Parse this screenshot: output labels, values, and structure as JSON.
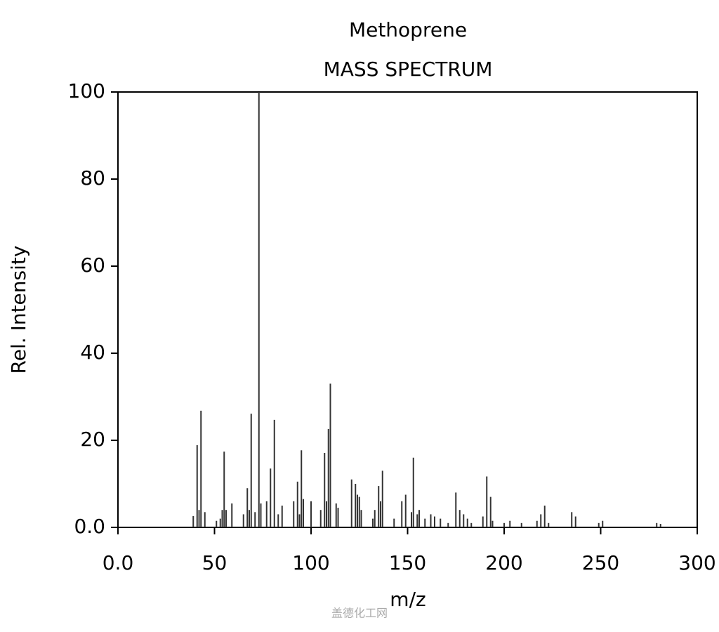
{
  "chart_data": {
    "type": "spectrum",
    "title": "Methoprene",
    "subtitle": "MASS SPECTRUM",
    "x_label": "m/z",
    "y_label": "Rel. Intensity",
    "color": "#333333",
    "x": [
      39,
      41,
      42,
      43,
      45,
      51,
      53,
      54,
      55,
      56,
      59,
      65,
      67,
      68,
      69,
      71,
      73,
      74,
      77,
      79,
      81,
      83,
      85,
      91,
      93,
      94,
      95,
      96,
      100,
      105,
      107,
      108,
      109,
      110,
      113,
      114,
      121,
      123,
      124,
      125,
      126,
      132,
      133,
      135,
      136,
      137,
      143,
      147,
      149,
      152,
      153,
      155,
      156,
      159,
      162,
      164,
      167,
      171,
      175,
      177,
      179,
      181,
      183,
      189,
      191,
      193,
      194,
      200,
      203,
      209,
      217,
      219,
      221,
      223,
      235,
      237,
      249,
      251,
      279,
      281
    ],
    "values": [
      2.6,
      18.9,
      4,
      26.8,
      3.5,
      1.5,
      2,
      4,
      17.4,
      4,
      5.5,
      3,
      9,
      4,
      26.1,
      3.5,
      100,
      5.5,
      6,
      13.5,
      24.7,
      3,
      5,
      6,
      10.5,
      3,
      17.7,
      6.5,
      6,
      4,
      17.1,
      6,
      22.6,
      33,
      5.5,
      4.5,
      11,
      10,
      7.5,
      7,
      4,
      2,
      4,
      9.5,
      6,
      13,
      2,
      6,
      7.5,
      3.5,
      16,
      3,
      4,
      2,
      3,
      2.5,
      2,
      1,
      8,
      4,
      3,
      2,
      1,
      2.5,
      11.7,
      7,
      1.5,
      1,
      1.5,
      1,
      1.5,
      3,
      5,
      1,
      3.5,
      2.5,
      1,
      1.5,
      1,
      0.8
    ],
    "xlim": [
      0,
      300
    ],
    "xticks": [
      {
        "value": 0,
        "label": "0.0"
      },
      50,
      100,
      150,
      200,
      250,
      300
    ],
    "ylim": [
      0,
      100
    ],
    "yticks": [
      {
        "value": 0,
        "label": "0.0"
      },
      20,
      40,
      60,
      80,
      100
    ],
    "watermark": "盖德化工网"
  }
}
